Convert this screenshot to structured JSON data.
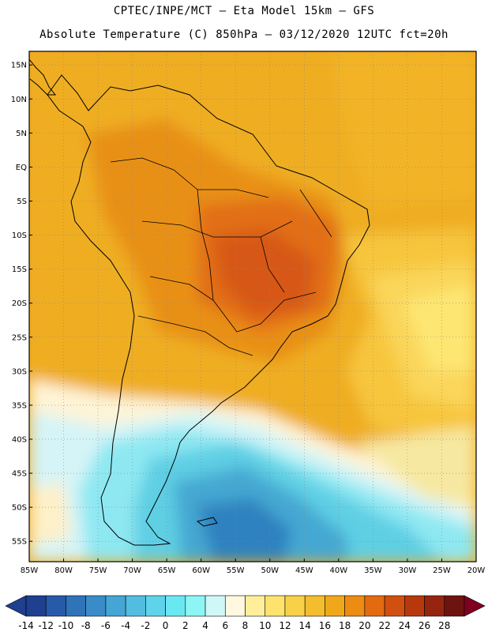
{
  "header": {
    "line1": "CPTEC/INPE/MCT —  Eta Model 15km — GFS",
    "line2": "Absolute Temperature (C) 850hPa — 03/12/2020 12UTC fct=20h"
  },
  "map": {
    "lat_labels": [
      "15N",
      "10N",
      "5N",
      "EQ",
      "5S",
      "10S",
      "15S",
      "20S",
      "25S",
      "30S",
      "35S",
      "40S",
      "45S",
      "50S",
      "55S"
    ],
    "lon_labels": [
      "85W",
      "80W",
      "75W",
      "70W",
      "65W",
      "60W",
      "55W",
      "50W",
      "45W",
      "40W",
      "35W",
      "30W",
      "25W",
      "20W"
    ],
    "lat_range": [
      17,
      -58
    ],
    "lon_range": [
      -85,
      -20
    ],
    "gridlines": true
  },
  "colorbar": {
    "labels": [
      "-14",
      "-12",
      "-10",
      "-8",
      "-6",
      "-4",
      "-2",
      "0",
      "2",
      "4",
      "6",
      "8",
      "10",
      "12",
      "14",
      "16",
      "18",
      "20",
      "22",
      "24",
      "26",
      "28"
    ],
    "colors": [
      "#1f3f8f",
      "#275aa8",
      "#2f73b8",
      "#3a8cc8",
      "#45a5d4",
      "#52bde0",
      "#5fd3ea",
      "#6ae8f2",
      "#8ef5f5",
      "#cff7f7",
      "#fff7e0",
      "#ffef9a",
      "#fde36e",
      "#f9d148",
      "#f4bd2e",
      "#f0a81a",
      "#ec8c12",
      "#e46a10",
      "#d2500f",
      "#b8380e",
      "#962510",
      "#6e1410",
      "#800020"
    ]
  }
}
